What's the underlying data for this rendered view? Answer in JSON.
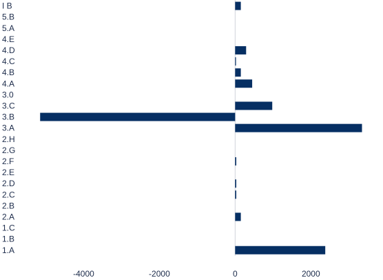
{
  "chart_data": {
    "type": "bar",
    "orientation": "horizontal",
    "title": "",
    "xlabel": "",
    "ylabel": "",
    "categories": [
      "I B",
      "5.B",
      "5.A",
      "4.E",
      "4.D",
      "4.C",
      "4.B",
      "4.A",
      "3.0",
      "3.C",
      "3.B",
      "3.A",
      "2.H",
      "2.G",
      "2.F",
      "2.E",
      "2.D",
      "2.C",
      "2.B",
      "2.A",
      "1.C",
      "1.B",
      "1.A"
    ],
    "values": [
      150,
      0,
      0,
      0,
      290,
      20,
      150,
      450,
      0,
      980,
      -5150,
      3350,
      0,
      0,
      30,
      0,
      30,
      30,
      0,
      150,
      0,
      0,
      2380
    ],
    "xticks": [
      -4000,
      -2000,
      0,
      2000
    ],
    "xtick_labels": [
      "-4000",
      "-2000",
      "0",
      "2000"
    ],
    "xlim": [
      -5300,
      3450
    ],
    "grid": false,
    "legend": "none",
    "bar_color": "#062f63"
  }
}
